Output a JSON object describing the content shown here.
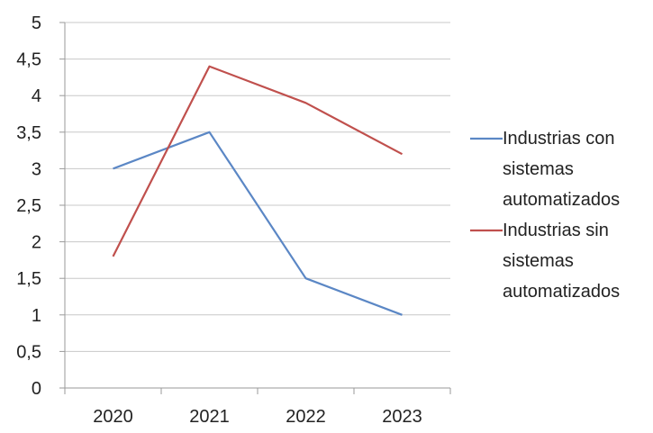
{
  "chart_data": {
    "type": "line",
    "title": "",
    "xlabel": "",
    "ylabel": "",
    "categories": [
      "2020",
      "2021",
      "2022",
      "2023"
    ],
    "ylim": [
      0,
      5
    ],
    "y_ticks": [
      "0",
      "0,5",
      "1",
      "1,5",
      "2",
      "2,5",
      "3",
      "3,5",
      "4",
      "4,5",
      "5"
    ],
    "grid": true,
    "legend_position": "right",
    "series": [
      {
        "name": "Industrias con sistemas automatizados",
        "legend_lines": [
          "Industrias con",
          "sistemas",
          "automatizados"
        ],
        "color": "#5b87c5",
        "values": [
          3.0,
          3.5,
          1.5,
          1.0
        ]
      },
      {
        "name": "Industrias sin sistemas automatizados",
        "legend_lines": [
          "Industrias sin",
          "sistemas",
          "automatizados"
        ],
        "color": "#c0504d",
        "values": [
          1.8,
          4.4,
          3.9,
          3.2
        ]
      }
    ]
  }
}
